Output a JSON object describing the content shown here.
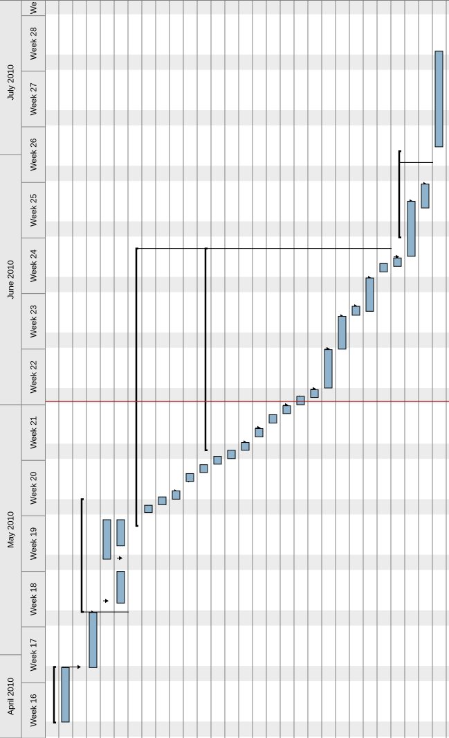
{
  "colors": {
    "header_bg": "#e8e8e8",
    "header_line": "#808080",
    "grid_line": "#808080",
    "stripe": "#ececec",
    "bar_fill": "#8fb3cc",
    "bar_stroke": "#000000",
    "link": "#000000",
    "today_line": "#b22222"
  },
  "chart_data": {
    "type": "gantt",
    "orientation": "rotated",
    "months": [
      {
        "label": "April 2010",
        "first_week": 16,
        "last_week": 17.5
      },
      {
        "label": "May 2010",
        "first_week": 17.5,
        "last_week": 22
      },
      {
        "label": "June 2010",
        "first_week": 22,
        "last_week": 26.5
      },
      {
        "label": "July 2010",
        "first_week": 26.5,
        "last_week": 29.1
      }
    ],
    "weeks": [
      {
        "label": "Week  16",
        "week": 16
      },
      {
        "label": "Week  17",
        "week": 17
      },
      {
        "label": "Week  18",
        "week": 18
      },
      {
        "label": "Week  19",
        "week": 19
      },
      {
        "label": "Week  20",
        "week": 20
      },
      {
        "label": "Week  21",
        "week": 21
      },
      {
        "label": "Week  22",
        "week": 22
      },
      {
        "label": "Week  23",
        "week": 23
      },
      {
        "label": "Week  24",
        "week": 24
      },
      {
        "label": "Week  25",
        "week": 25
      },
      {
        "label": "Week  26",
        "week": 26
      },
      {
        "label": "Week  27",
        "week": 27
      },
      {
        "label": "Week  28",
        "week": 28
      },
      {
        "label": "We",
        "week": 29
      }
    ],
    "week_range": [
      15.73,
      29.12
    ],
    "row_count": 28,
    "today_week": 22.06,
    "tasks": [
      {
        "row": 1,
        "start": 16.29,
        "end": 17.27
      },
      {
        "row": 3,
        "start": 17.27,
        "end": 18.26
      },
      {
        "row": 4,
        "start": 19.22,
        "end": 19.93
      },
      {
        "row": 5,
        "start": 19.0,
        "end": 18.43
      },
      {
        "row": 5,
        "start": 19.93,
        "end": 19.46
      },
      {
        "row": 7,
        "start": 20.06,
        "end": 20.19
      },
      {
        "row": 8,
        "start": 20.2,
        "end": 20.34
      },
      {
        "row": 9,
        "start": 20.3,
        "end": 20.45
      },
      {
        "row": 10,
        "start": 20.62,
        "end": 20.76
      },
      {
        "row": 11,
        "start": 20.78,
        "end": 20.92
      },
      {
        "row": 12,
        "start": 20.93,
        "end": 21.07
      },
      {
        "row": 13,
        "start": 21.03,
        "end": 21.18
      },
      {
        "row": 14,
        "start": 21.18,
        "end": 21.32
      },
      {
        "row": 15,
        "start": 21.42,
        "end": 21.57
      },
      {
        "row": 16,
        "start": 21.67,
        "end": 21.82
      },
      {
        "row": 17,
        "start": 21.84,
        "end": 21.98
      },
      {
        "row": 18,
        "start": 22.0,
        "end": 22.15
      },
      {
        "row": 19,
        "start": 22.13,
        "end": 22.27
      },
      {
        "row": 20,
        "start": 22.3,
        "end": 22.99
      },
      {
        "row": 21,
        "start": 23.0,
        "end": 23.59
      },
      {
        "row": 22,
        "start": 23.61,
        "end": 23.77
      },
      {
        "row": 23,
        "start": 23.68,
        "end": 24.28
      },
      {
        "row": 24,
        "start": 24.39,
        "end": 24.54
      },
      {
        "row": 25,
        "start": 24.49,
        "end": 24.64
      },
      {
        "row": 26,
        "start": 24.67,
        "end": 25.66
      },
      {
        "row": 27,
        "start": 25.54,
        "end": 25.97
      },
      {
        "row": 28,
        "start": 26.64,
        "end": 28.36
      }
    ],
    "summaries": [
      {
        "start": 16.28,
        "end": 17.28
      },
      {
        "start": 18.27,
        "end": 20.3
      },
      {
        "start": 19.82,
        "end": 24.81
      },
      {
        "start": 21.18,
        "end": 24.81
      },
      {
        "start": 25.01,
        "end": 26.56
      }
    ],
    "links": [
      {
        "from_week": 17.28,
        "to_week": 17.28,
        "x1": 1,
        "x2": 3
      },
      {
        "from_week": 18.26,
        "to_week": 18.26,
        "x1": 3,
        "x2": 4
      },
      {
        "from_week": 18.47,
        "to_week": 18.47,
        "x1": 4,
        "x2": 5
      },
      {
        "from_week": 19.24,
        "to_week": 19.24,
        "x1": 5,
        "x2": 6
      },
      {
        "from_week": 20.11,
        "to_week": 20.11,
        "x1": 7,
        "x2": 8
      },
      {
        "from_week": 20.27,
        "to_week": 20.27,
        "x1": 8,
        "x2": 9
      },
      {
        "from_week": 20.44,
        "to_week": 20.44,
        "x1": 9,
        "x2": 10
      },
      {
        "from_week": 20.64,
        "to_week": 20.64,
        "x1": 10,
        "x2": 11
      },
      {
        "from_week": 20.99,
        "to_week": 20.99,
        "x1": 12,
        "x2": 13
      },
      {
        "from_week": 21.09,
        "to_week": 21.09,
        "x1": 13,
        "x2": 14
      },
      {
        "from_week": 21.32,
        "to_week": 21.32,
        "x1": 14,
        "x2": 15
      },
      {
        "from_week": 21.58,
        "to_week": 21.58,
        "x1": 15,
        "x2": 16
      },
      {
        "from_week": 21.75,
        "to_week": 21.75,
        "x1": 16,
        "x2": 17
      },
      {
        "from_week": 21.99,
        "to_week": 21.99,
        "x1": 17,
        "x2": 18
      },
      {
        "from_week": 22.13,
        "to_week": 22.13,
        "x1": 18,
        "x2": 19
      },
      {
        "from_week": 22.28,
        "to_week": 22.28,
        "x1": 19,
        "x2": 20
      },
      {
        "from_week": 23.0,
        "to_week": 23.0,
        "x1": 20,
        "x2": 21
      },
      {
        "from_week": 23.59,
        "to_week": 23.59,
        "x1": 21,
        "x2": 22
      },
      {
        "from_week": 23.77,
        "to_week": 23.77,
        "x1": 22,
        "x2": 23
      },
      {
        "from_week": 24.28,
        "to_week": 24.28,
        "x1": 23,
        "x2": 24
      },
      {
        "from_week": 24.45,
        "to_week": 24.45,
        "x1": 24,
        "x2": 25
      },
      {
        "from_week": 24.66,
        "to_week": 24.66,
        "x1": 25,
        "x2": 26
      },
      {
        "from_week": 25.66,
        "to_week": 25.66,
        "x1": 26,
        "x2": 27
      },
      {
        "from_week": 25.97,
        "to_week": 25.97,
        "x1": 27,
        "x2": 28
      }
    ]
  }
}
